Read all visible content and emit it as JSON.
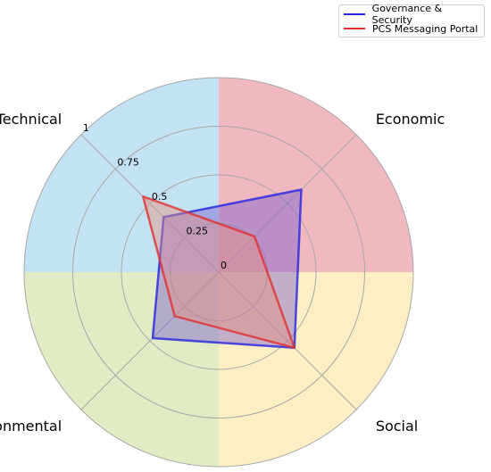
{
  "chart_data": {
    "type": "radar",
    "categories": [
      "Economic",
      "Social",
      "Environmental",
      "Technical"
    ],
    "radial_ticks": [
      "0",
      "0.25",
      "0.5",
      "0.75",
      "1"
    ],
    "rlim": [
      0,
      1
    ],
    "quadrant_colors": [
      "#f2b8c0",
      "#fdefc3",
      "#e1ecc5",
      "#c3e2f3"
    ],
    "series": [
      {
        "name": "Governance & Security",
        "color": "#2424e0",
        "fill": "#7b5fd0",
        "values": [
          0.6,
          0.55,
          0.48,
          0.4
        ]
      },
      {
        "name": "PCS Messaging Portal",
        "color": "#e03030",
        "fill": "#e89080",
        "values": [
          0.26,
          0.55,
          0.32,
          0.55
        ]
      }
    ],
    "grid": true,
    "legend_position": "top-right"
  }
}
